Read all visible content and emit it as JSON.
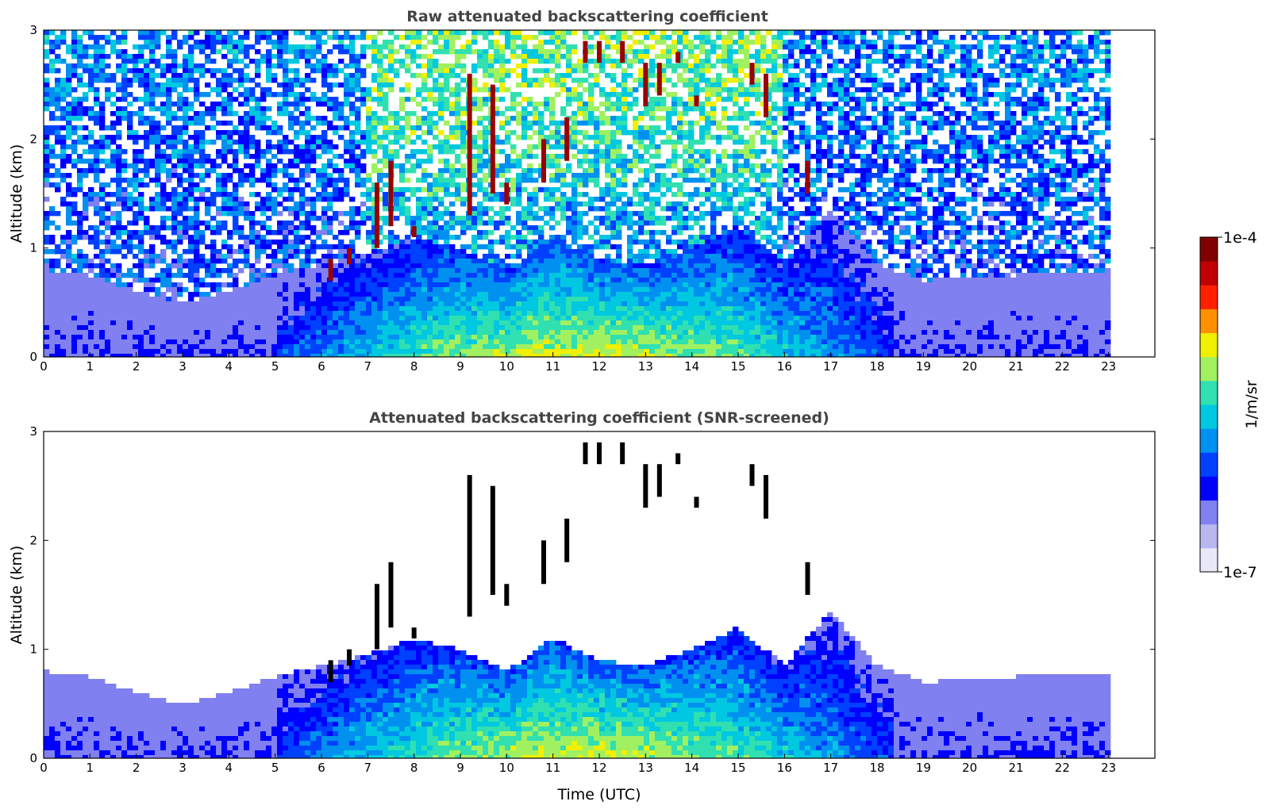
{
  "colors": {
    "colormap": [
      "#e8e8f8",
      "#b8b8f0",
      "#8080f0",
      "#0000ff",
      "#0040ff",
      "#0090f0",
      "#00c8e0",
      "#30e0b0",
      "#a0f060",
      "#f0f000",
      "#ff9000",
      "#ff2000",
      "#c00000",
      "#800000"
    ]
  },
  "chart_data": [
    {
      "type": "heatmap",
      "title": "Raw attenuated backscattering coefficient",
      "xlabel": "",
      "ylabel": "Altitude (km)",
      "xlim": [
        0,
        24
      ],
      "ylim": [
        0,
        3
      ],
      "x_ticks": [
        "0",
        "1",
        "2",
        "3",
        "4",
        "5",
        "6",
        "7",
        "8",
        "9",
        "10",
        "11",
        "12",
        "13",
        "14",
        "15",
        "16",
        "17",
        "18",
        "19",
        "20",
        "21",
        "22",
        "23"
      ],
      "y_ticks": [
        "0",
        "1",
        "2",
        "3"
      ],
      "data_end_time": 23,
      "screened": false
    },
    {
      "type": "heatmap",
      "title": "Attenuated backscattering coefficient (SNR-screened)",
      "xlabel": "Time (UTC)",
      "ylabel": "Altitude (km)",
      "xlim": [
        0,
        24
      ],
      "ylim": [
        0,
        3
      ],
      "x_ticks": [
        "0",
        "1",
        "2",
        "3",
        "4",
        "5",
        "6",
        "7",
        "8",
        "9",
        "10",
        "11",
        "12",
        "13",
        "14",
        "15",
        "16",
        "17",
        "18",
        "19",
        "20",
        "21",
        "22",
        "23"
      ],
      "y_ticks": [
        "0",
        "1",
        "2",
        "3"
      ],
      "data_end_time": 23,
      "screened": true
    }
  ],
  "colorbar": {
    "max_label": "1e-4",
    "min_label": "1e-7",
    "unit_label": "1/m/sr",
    "scale": "log"
  }
}
